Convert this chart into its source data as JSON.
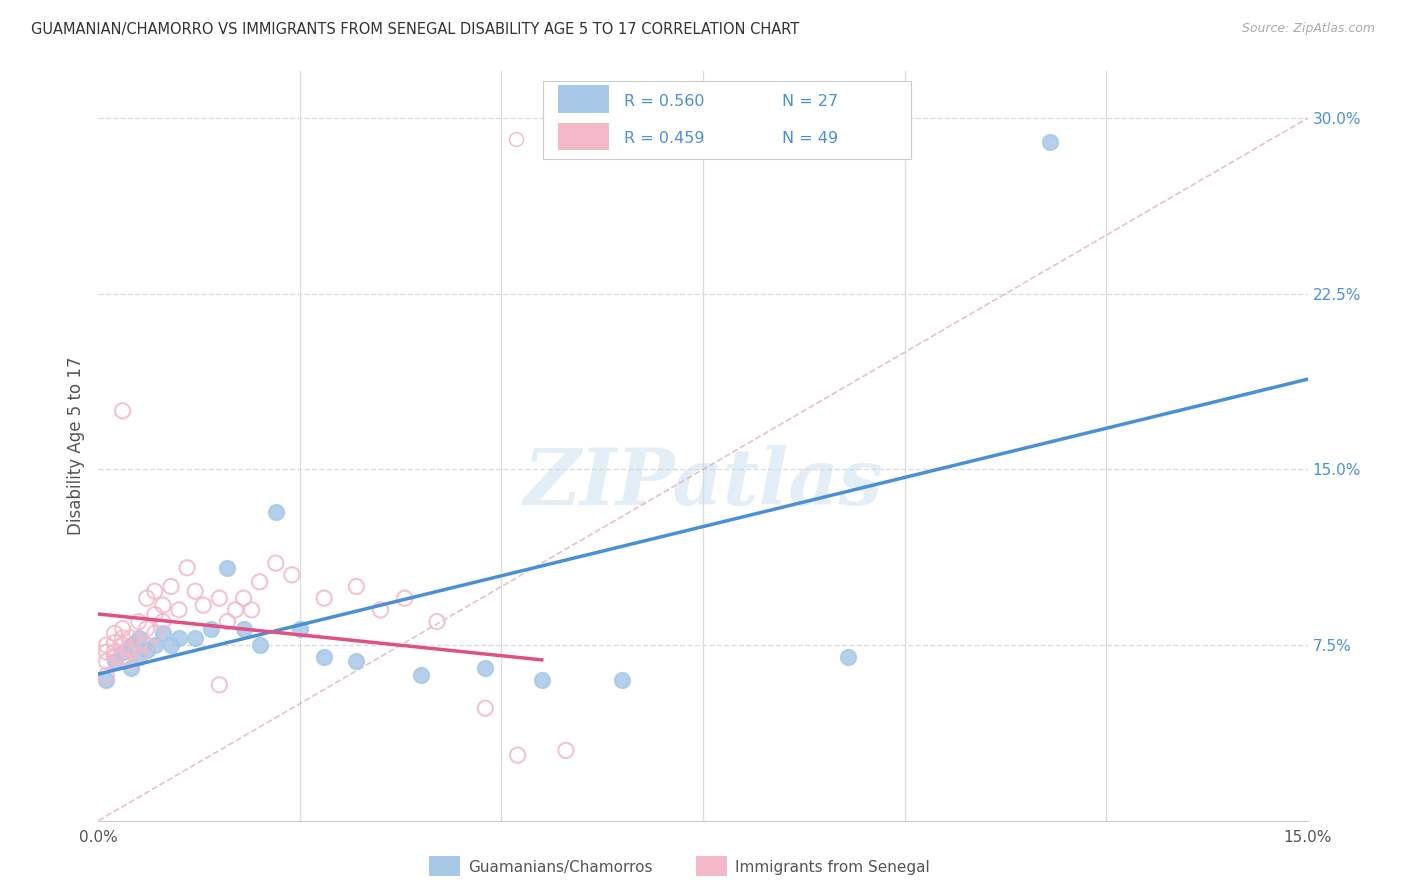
{
  "title": "GUAMANIAN/CHAMORRO VS IMMIGRANTS FROM SENEGAL DISABILITY AGE 5 TO 17 CORRELATION CHART",
  "source": "Source: ZipAtlas.com",
  "ylabel": "Disability Age 5 to 17",
  "xlim": [
    0.0,
    0.15
  ],
  "ylim": [
    0.0,
    0.32
  ],
  "blue_color": "#a8c8e8",
  "pink_color": "#f4b8c8",
  "blue_line_color": "#4a90d9",
  "pink_line_color": "#e05080",
  "diagonal_color": "#cccccc",
  "R_blue": 0.56,
  "N_blue": 27,
  "R_pink": 0.459,
  "N_pink": 49,
  "legend_label_blue": "Guamanians/Chamorros",
  "legend_label_pink": "Immigrants from Senegal",
  "blue_scatter_x": [
    0.001,
    0.002,
    0.003,
    0.004,
    0.004,
    0.005,
    0.005,
    0.006,
    0.007,
    0.008,
    0.009,
    0.01,
    0.012,
    0.014,
    0.016,
    0.018,
    0.02,
    0.022,
    0.025,
    0.028,
    0.032,
    0.04,
    0.048,
    0.055,
    0.065,
    0.093,
    0.118
  ],
  "blue_scatter_y": [
    0.06,
    0.068,
    0.072,
    0.075,
    0.065,
    0.07,
    0.078,
    0.073,
    0.075,
    0.08,
    0.075,
    0.078,
    0.078,
    0.082,
    0.108,
    0.082,
    0.075,
    0.132,
    0.082,
    0.07,
    0.068,
    0.062,
    0.065,
    0.06,
    0.06,
    0.07,
    0.29
  ],
  "pink_scatter_x": [
    0.001,
    0.001,
    0.001,
    0.001,
    0.002,
    0.002,
    0.002,
    0.002,
    0.003,
    0.003,
    0.003,
    0.003,
    0.004,
    0.004,
    0.004,
    0.005,
    0.005,
    0.005,
    0.006,
    0.006,
    0.006,
    0.007,
    0.007,
    0.007,
    0.008,
    0.008,
    0.009,
    0.01,
    0.011,
    0.012,
    0.013,
    0.015,
    0.016,
    0.017,
    0.018,
    0.019,
    0.02,
    0.022,
    0.024,
    0.028,
    0.032,
    0.035,
    0.038,
    0.042,
    0.048,
    0.052,
    0.058,
    0.003,
    0.015
  ],
  "pink_scatter_y": [
    0.075,
    0.072,
    0.068,
    0.062,
    0.07,
    0.072,
    0.076,
    0.08,
    0.07,
    0.075,
    0.078,
    0.082,
    0.068,
    0.073,
    0.078,
    0.07,
    0.075,
    0.085,
    0.075,
    0.082,
    0.095,
    0.08,
    0.088,
    0.098,
    0.085,
    0.092,
    0.1,
    0.09,
    0.108,
    0.098,
    0.092,
    0.095,
    0.085,
    0.09,
    0.095,
    0.09,
    0.102,
    0.11,
    0.105,
    0.095,
    0.1,
    0.09,
    0.095,
    0.085,
    0.048,
    0.028,
    0.03,
    0.175,
    0.058
  ],
  "watermark": "ZIPatlas",
  "background_color": "#ffffff",
  "grid_color": "#dddddd"
}
